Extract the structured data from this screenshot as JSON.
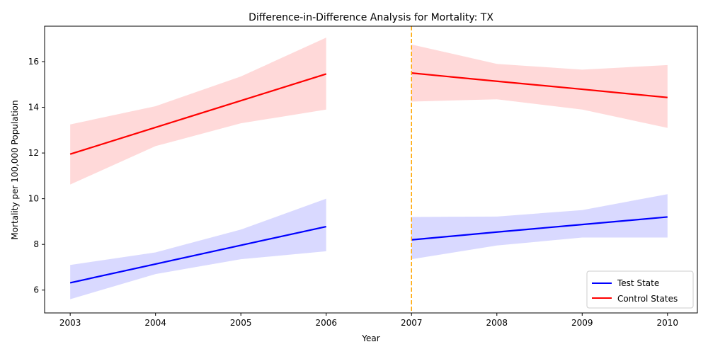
{
  "chart_data": {
    "type": "line",
    "title": "Difference-in-Difference Analysis for Mortality: TX",
    "xlabel": "Year",
    "ylabel": "Mortality per 100,000 Population",
    "xlim": [
      2002.7,
      2010.35
    ],
    "ylim": [
      5.0,
      17.55
    ],
    "xticks": [
      2003,
      2004,
      2005,
      2006,
      2007,
      2008,
      2009,
      2010
    ],
    "yticks": [
      6,
      8,
      10,
      12,
      14,
      16
    ],
    "intervention_year": 2007,
    "legend": {
      "position": "lower-right",
      "entries": [
        "Test State",
        "Control States"
      ]
    },
    "colors": {
      "test": "#0000ff",
      "test_band": "#0000ff",
      "control": "#ff0000",
      "control_band": "#ff0000",
      "intervention": "#ffa500"
    },
    "series": [
      {
        "name": "Test State",
        "color_key": "test",
        "segments": [
          {
            "x": [
              2003,
              2004,
              2005,
              2006
            ],
            "y": [
              6.32,
              7.14,
              7.96,
              8.78
            ],
            "upper": [
              7.1,
              7.65,
              8.65,
              10.0
            ],
            "lower": [
              5.6,
              6.7,
              7.35,
              7.7
            ]
          },
          {
            "x": [
              2007,
              2008,
              2009,
              2010
            ],
            "y": [
              8.2,
              8.54,
              8.87,
              9.2
            ],
            "upper": [
              9.2,
              9.22,
              9.5,
              10.2
            ],
            "lower": [
              7.35,
              7.95,
              8.3,
              8.3
            ]
          }
        ]
      },
      {
        "name": "Control States",
        "color_key": "control",
        "segments": [
          {
            "x": [
              2003,
              2004,
              2005,
              2006
            ],
            "y": [
              11.95,
              13.12,
              14.29,
              15.46
            ],
            "upper": [
              13.25,
              14.05,
              15.35,
              17.05
            ],
            "lower": [
              10.62,
              12.3,
              13.3,
              13.9
            ]
          },
          {
            "x": [
              2007,
              2008,
              2009,
              2010
            ],
            "y": [
              15.5,
              15.14,
              14.79,
              14.43
            ],
            "upper": [
              16.75,
              15.9,
              15.65,
              15.85
            ],
            "lower": [
              14.25,
              14.35,
              13.9,
              13.1
            ]
          }
        ]
      }
    ]
  }
}
